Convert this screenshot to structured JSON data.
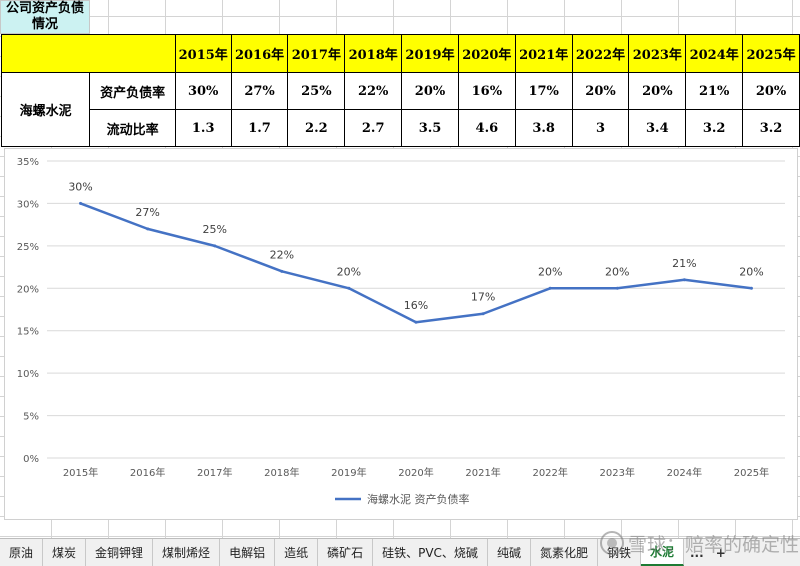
{
  "sheet": {
    "title": "公司资产负债情况",
    "years": [
      "2015年",
      "2016年",
      "2017年",
      "2018年",
      "2019年",
      "2020年",
      "2021年",
      "2022年",
      "2023年",
      "2024年",
      "2025年"
    ],
    "company": "海螺水泥",
    "metrics": [
      {
        "label": "资产负债率",
        "values": [
          "30%",
          "27%",
          "25%",
          "22%",
          "20%",
          "16%",
          "17%",
          "20%",
          "20%",
          "21%",
          "20%"
        ]
      },
      {
        "label": "流动比率",
        "values": [
          "1.3",
          "1.7",
          "2.2",
          "2.7",
          "3.5",
          "4.6",
          "3.8",
          "3",
          "3.4",
          "3.2",
          "3.2"
        ]
      }
    ],
    "header_fill": "#ffff00",
    "title_fill": "#ccf2f2"
  },
  "chart_data": {
    "type": "line",
    "categories": [
      "2015年",
      "2016年",
      "2017年",
      "2018年",
      "2019年",
      "2020年",
      "2021年",
      "2022年",
      "2023年",
      "2024年",
      "2025年"
    ],
    "series": [
      {
        "name": "海螺水泥 资产负债率",
        "values": [
          30,
          27,
          25,
          22,
          20,
          16,
          17,
          20,
          20,
          21,
          20
        ],
        "color": "#4472c4"
      }
    ],
    "data_labels": [
      "30%",
      "27%",
      "25%",
      "22%",
      "20%",
      "16%",
      "17%",
      "20%",
      "20%",
      "21%",
      "20%"
    ],
    "y_ticks": [
      "0%",
      "5%",
      "10%",
      "15%",
      "20%",
      "25%",
      "30%",
      "35%"
    ],
    "ylim": [
      0,
      35
    ],
    "grid": true,
    "legend": "bottom"
  },
  "tabs": [
    {
      "label": "原油",
      "active": false
    },
    {
      "label": "煤炭",
      "active": false
    },
    {
      "label": "金铜钾锂",
      "active": false
    },
    {
      "label": "煤制烯烃",
      "active": false
    },
    {
      "label": "电解铝",
      "active": false
    },
    {
      "label": "造纸",
      "active": false
    },
    {
      "label": "磷矿石",
      "active": false
    },
    {
      "label": "硅铁、PVC、烧碱",
      "active": false
    },
    {
      "label": "纯碱",
      "active": false
    },
    {
      "label": "氮素化肥",
      "active": false
    },
    {
      "label": "钢铁",
      "active": false
    },
    {
      "label": "水泥",
      "active": true
    }
  ],
  "tab_controls": {
    "more": "...",
    "add": "+"
  },
  "watermark": "雪球：赔率的确定性"
}
